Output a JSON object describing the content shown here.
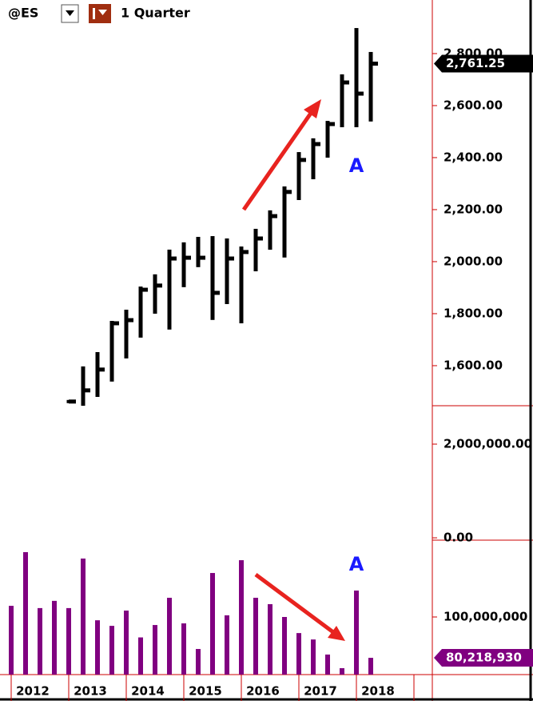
{
  "header": {
    "symbol": "@ES",
    "interval": "1 Quarter"
  },
  "years": [
    "2012",
    "2013",
    "2014",
    "2015",
    "2016",
    "2017",
    "2018"
  ],
  "chart_data": [
    {
      "type": "ohlc",
      "high": [
        null,
        null,
        null,
        null,
        1462,
        1591,
        1646,
        1766,
        1809,
        1898,
        1945,
        2040,
        2068,
        2089,
        2092,
        2083,
        2052,
        2120,
        2191,
        2283,
        2415,
        2468,
        2535,
        2714,
        2892,
        2800
      ],
      "low": [
        null,
        null,
        null,
        null,
        1462,
        1452,
        1486,
        1545,
        1634,
        1714,
        1806,
        1745,
        1908,
        1985,
        1782,
        1843,
        1769,
        1969,
        2052,
        2022,
        2243,
        2323,
        2406,
        2523,
        2523,
        2545
      ],
      "close": [
        null,
        null,
        null,
        null,
        1462,
        1505,
        1585,
        1763,
        1775,
        1892,
        1908,
        2012,
        2015,
        2015,
        1880,
        2012,
        2037,
        2089,
        2175,
        2268,
        2391,
        2452,
        2529,
        2689,
        2646,
        2761.25
      ],
      "color": "#000000",
      "ylim": [
        1446,
        3006
      ],
      "yticks": [
        {
          "value": 1600,
          "label": "1,600.00"
        },
        {
          "value": 1800,
          "label": "1,800.00"
        },
        {
          "value": 2000,
          "label": "2,000.00"
        },
        {
          "value": 2200,
          "label": "2,200.00"
        },
        {
          "value": 2400,
          "label": "2,400.00"
        },
        {
          "value": 2600,
          "label": "2,600.00"
        },
        {
          "value": 2800,
          "label": "2,800.00"
        }
      ],
      "last_value": {
        "value": 2761.25,
        "label": "2,761.25"
      },
      "annotation": "A"
    },
    {
      "type": "empty",
      "ylim": [
        -50000,
        2820000
      ],
      "yticks": [
        {
          "value": 2000000,
          "label": "2,000,000.00"
        },
        {
          "value": 0,
          "label": "0.00"
        }
      ]
    },
    {
      "type": "bar",
      "values": [
        105400000,
        131400000,
        104300000,
        107800000,
        104300000,
        128300000,
        98400000,
        95700000,
        103100000,
        90100000,
        96100000,
        109300000,
        96900000,
        84500000,
        121300000,
        100800000,
        127500000,
        109300000,
        106200000,
        100000000,
        92200000,
        89100000,
        81800000,
        75200000,
        112800000,
        80218930
      ],
      "color": "#800080",
      "ylim": [
        72090000,
        137210000
      ],
      "yticks": [
        {
          "value": 100000000,
          "label": "100,000,000"
        }
      ],
      "last_value": {
        "value": 80218930,
        "label": "80,218,930"
      },
      "annotation": "A"
    }
  ]
}
